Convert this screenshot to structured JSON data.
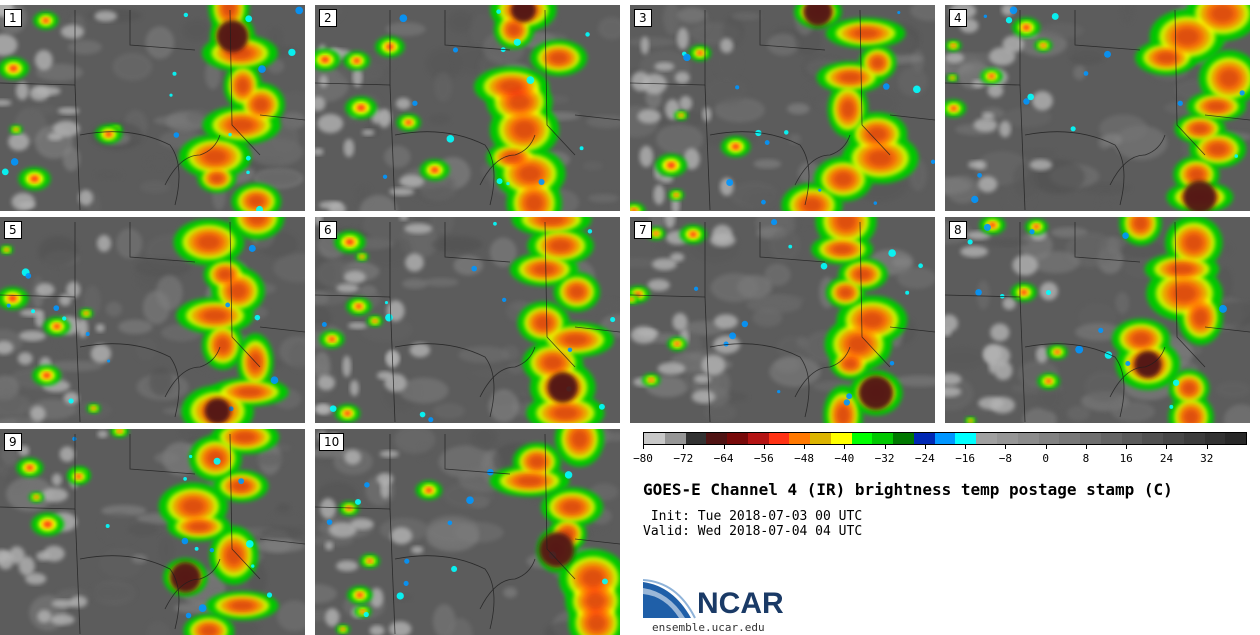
{
  "figure": {
    "title": "GOES-E Channel 4 (IR) brightness temp postage stamp (C)",
    "init_label": " Init: Tue 2018-07-03 00 UTC",
    "valid_label": "Valid: Wed 2018-07-04 04 UTC",
    "org_name": "NCAR",
    "url": "ensemble.ucar.edu"
  },
  "panels": [
    {
      "label": "1"
    },
    {
      "label": "2"
    },
    {
      "label": "3"
    },
    {
      "label": "4"
    },
    {
      "label": "5"
    },
    {
      "label": "6"
    },
    {
      "label": "7"
    },
    {
      "label": "8"
    },
    {
      "label": "9"
    },
    {
      "label": "10"
    }
  ],
  "colorbar": {
    "colors": [
      "#c8c8c8",
      "#969696",
      "#323232",
      "#501414",
      "#780a0a",
      "#b41414",
      "#ff3214",
      "#ff7800",
      "#dcb400",
      "#ffff00",
      "#00ff00",
      "#00c800",
      "#007800",
      "#0028b4",
      "#0096ff",
      "#00ffff",
      "#a0a0a0",
      "#969696",
      "#8c8c8c",
      "#828282",
      "#787878",
      "#6e6e6e",
      "#646464",
      "#5a5a5a",
      "#505050",
      "#464646",
      "#3c3c3c",
      "#323232",
      "#282828"
    ],
    "min": -80,
    "max": 40,
    "tick_values": [
      -80,
      -72,
      -64,
      -56,
      -48,
      -40,
      -32,
      -24,
      -16,
      -8,
      0,
      8,
      16,
      24,
      32
    ],
    "tick_labels": [
      "−80",
      "−72",
      "−64",
      "−56",
      "−48",
      "−40",
      "−32",
      "−24",
      "−16",
      "−8",
      "0",
      "8",
      "16",
      "24",
      "32"
    ]
  }
}
